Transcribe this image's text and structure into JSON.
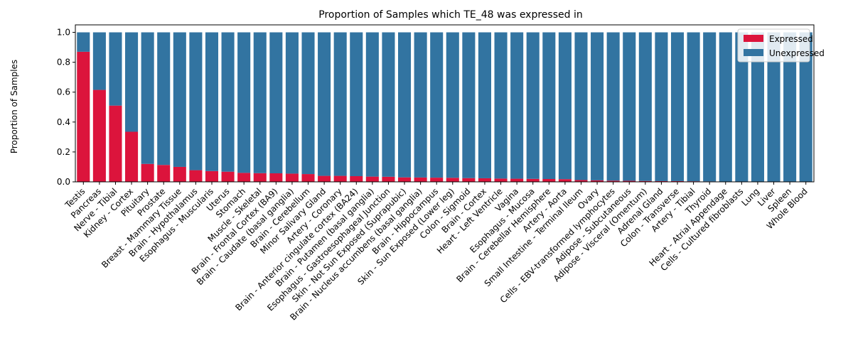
{
  "chart_data": {
    "type": "bar",
    "stacked": true,
    "title": "Proportion of Samples which TE_48 was expressed in",
    "xlabel": "",
    "ylabel": "Proportion of Samples",
    "ylim": [
      0,
      1.05
    ],
    "yticks": [
      0.0,
      0.2,
      0.4,
      0.6,
      0.8,
      1.0
    ],
    "ytick_labels": [
      "0.0",
      "0.2",
      "0.4",
      "0.6",
      "0.8",
      "1.0"
    ],
    "grid": false,
    "legend_position": "top-right",
    "categories": [
      "Testis",
      "Pancreas",
      "Nerve - Tibial",
      "Kidney - Cortex",
      "Pituitary",
      "Prostate",
      "Breast - Mammary Tissue",
      "Brain - Hypothalamus",
      "Esophagus - Muscularis",
      "Uterus",
      "Stomach",
      "Muscle - Skeletal",
      "Brain - Frontal Cortex (BA9)",
      "Brain - Caudate (basal ganglia)",
      "Brain - Cerebellum",
      "Minor Salivary Gland",
      "Artery - Coronary",
      "Brain - Anterior cingulate cortex (BA24)",
      "Brain - Putamen (basal ganglia)",
      "Esophagus - Gastroesophageal Junction",
      "Skin - Not Sun Exposed (Suprapubic)",
      "Brain - Nucleus accumbens (basal ganglia)",
      "Brain - Hippocampus",
      "Skin - Sun Exposed (Lower leg)",
      "Colon - Sigmoid",
      "Brain - Cortex",
      "Heart - Left Ventricle",
      "Vagina",
      "Esophagus - Mucosa",
      "Brain - Cerebellar Hemisphere",
      "Artery - Aorta",
      "Small Intestine - Terminal Ileum",
      "Ovary",
      "Cells - EBV-transformed lymphocytes",
      "Adipose - Subcutaneous",
      "Adipose - Visceral (Omentum)",
      "Adrenal Gland",
      "Colon - Transverse",
      "Artery - Tibial",
      "Thyroid",
      "Heart - Atrial Appendage",
      "Cells - Cultured fibroblasts",
      "Lung",
      "Liver",
      "Spleen",
      "Whole Blood"
    ],
    "series": [
      {
        "name": "Expressed",
        "color": "#dc143c",
        "values": [
          0.87,
          0.615,
          0.51,
          0.335,
          0.12,
          0.113,
          0.1,
          0.078,
          0.072,
          0.068,
          0.06,
          0.058,
          0.057,
          0.055,
          0.052,
          0.04,
          0.04,
          0.038,
          0.035,
          0.034,
          0.03,
          0.029,
          0.028,
          0.027,
          0.025,
          0.024,
          0.022,
          0.021,
          0.02,
          0.019,
          0.018,
          0.012,
          0.01,
          0.008,
          0.007,
          0.006,
          0.005,
          0.005,
          0.004,
          0.003,
          0.0,
          0.0,
          0.0,
          0.0,
          0.0,
          0.0
        ]
      },
      {
        "name": "Unexpressed",
        "color": "#3274a1",
        "values": [
          0.13,
          0.385,
          0.49,
          0.665,
          0.88,
          0.887,
          0.9,
          0.922,
          0.928,
          0.932,
          0.94,
          0.942,
          0.943,
          0.945,
          0.948,
          0.96,
          0.96,
          0.962,
          0.965,
          0.966,
          0.97,
          0.971,
          0.972,
          0.973,
          0.975,
          0.976,
          0.978,
          0.979,
          0.98,
          0.981,
          0.982,
          0.988,
          0.99,
          0.992,
          0.993,
          0.994,
          0.995,
          0.995,
          0.996,
          0.997,
          1.0,
          1.0,
          1.0,
          1.0,
          1.0,
          1.0
        ]
      }
    ]
  }
}
